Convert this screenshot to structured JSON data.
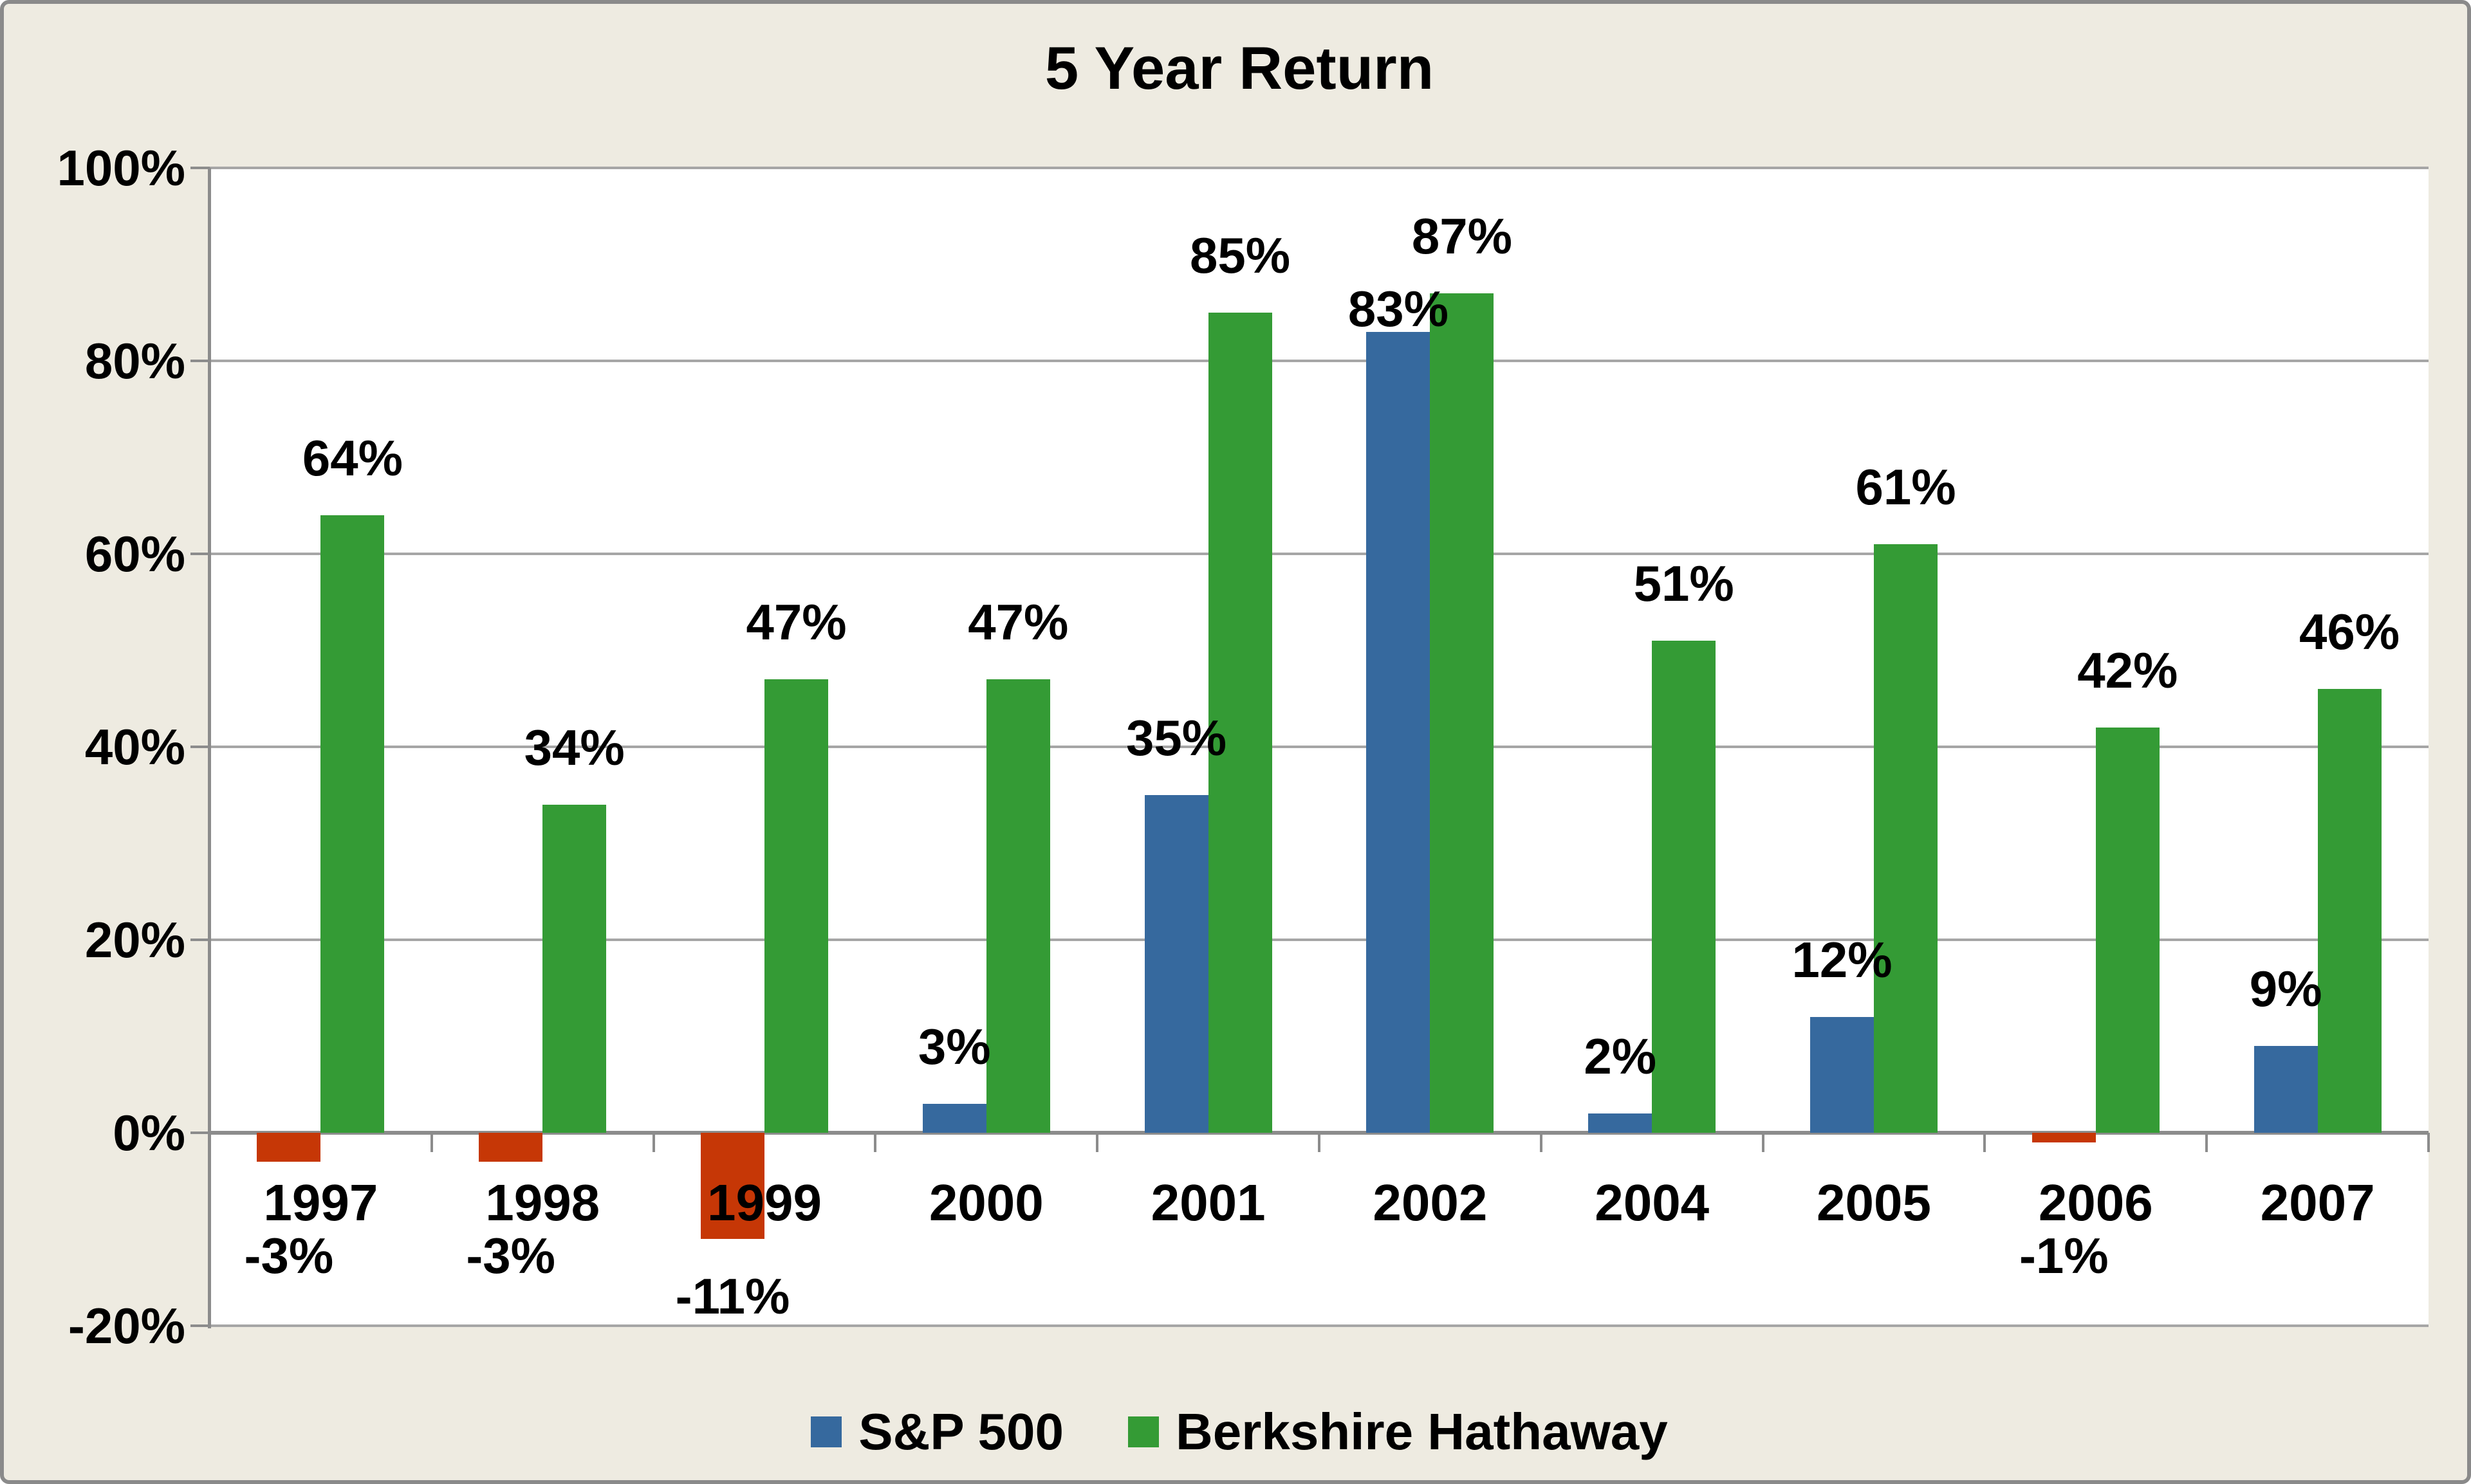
{
  "title": "5 Year Return",
  "colors": {
    "sp_positive": "#36699E",
    "sp_negative": "#C63706",
    "bh": "#349B35",
    "background": "#EEEBE1",
    "plot_background": "#FFFFFF",
    "gridline": "#A6A6A6",
    "axis": "#8C8C8C",
    "frame_border": "#8A8A8A",
    "text": "#000000"
  },
  "legend": [
    {
      "label": "S&P 500",
      "color": "#36699E"
    },
    {
      "label": "Berkshire Hathaway",
      "color": "#349B35"
    }
  ],
  "y_axis": {
    "tick_labels": [
      "100%",
      "80%",
      "60%",
      "40%",
      "20%",
      "0%",
      "-20%"
    ],
    "min": -20,
    "max": 100,
    "step": 20
  },
  "chart_data": {
    "type": "bar",
    "title": "5 Year Return",
    "categories": [
      "1997",
      "1998",
      "1999",
      "2000",
      "2001",
      "2002",
      "2004",
      "2005",
      "2006",
      "2007"
    ],
    "series": [
      {
        "name": "S&P 500",
        "values": [
          -3,
          -3,
          -11,
          3,
          35,
          83,
          2,
          12,
          -1,
          9
        ],
        "labels": [
          "-3%",
          "-3%",
          "-11%",
          "3%",
          "35%",
          "83%",
          "2%",
          "12%",
          "-1%",
          "9%"
        ]
      },
      {
        "name": "Berkshire Hathaway",
        "values": [
          64,
          34,
          47,
          47,
          85,
          87,
          51,
          61,
          42,
          46
        ],
        "labels": [
          "64%",
          "34%",
          "47%",
          "47%",
          "85%",
          "87%",
          "51%",
          "61%",
          "42%",
          "46%"
        ]
      }
    ],
    "ylim": [
      -20,
      100
    ],
    "grid": true,
    "legend_position": "bottom",
    "negative_color_applies_to": "S&P 500"
  }
}
